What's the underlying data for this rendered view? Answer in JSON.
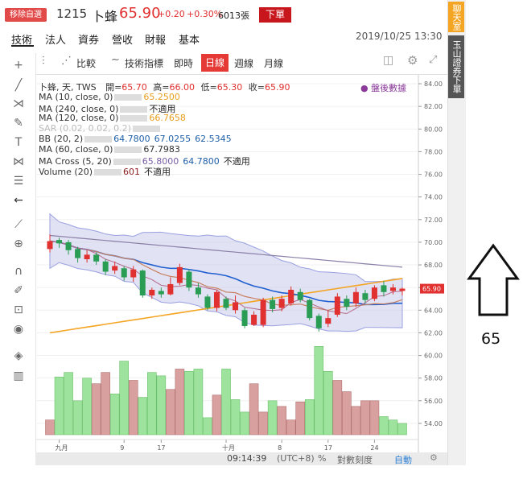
{
  "header": {
    "remove_fav": "移除自選",
    "code": "1215",
    "name": "卜蜂",
    "price": "65.90",
    "change": "+0.20",
    "change_pct": "+0.30%",
    "volume": "6013張",
    "order_button": "下單",
    "datetime": "2019/10/25 13:30"
  },
  "nav_tabs": [
    "技術",
    "法人",
    "資券",
    "營收",
    "財報",
    "基本"
  ],
  "toolbar": {
    "compare": "比較",
    "indicators": "技術指標",
    "periods": [
      "即時",
      "日線",
      "週線",
      "月線"
    ],
    "active_period": "日線"
  },
  "legend": {
    "title": "卜蜂, 天, TWS",
    "ohlc": {
      "open_label": "開=",
      "open": "65.70",
      "high_label": "高=",
      "high": "66.00",
      "low_label": "低=",
      "low": "65.30",
      "close_label": "收=",
      "close": "65.90"
    },
    "after_hours": "盤後數據",
    "rows": [
      {
        "name": "MA (10, close, 0)",
        "values": [
          "65.2500"
        ],
        "color": "#e8a020"
      },
      {
        "name": "MA (240, close, 0)",
        "values": [
          "不適用"
        ],
        "color": "#222"
      },
      {
        "name": "MA (120, close, 0)",
        "values": [
          "66.7658"
        ],
        "color": "#e8a020"
      },
      {
        "name": "SAR (0.02, 0.02, 0.2)",
        "values": [],
        "color": "#bbb"
      },
      {
        "name": "BB (20, 2)",
        "values": [
          "64.7800",
          "67.0255",
          "62.5345"
        ],
        "color": "#1f5fa8"
      },
      {
        "name": "MA (60, close, 0)",
        "values": [
          "67.7983"
        ],
        "color": "#333"
      },
      {
        "name": "MA Cross (5, 20)",
        "values": [
          "65.8000",
          "64.7800",
          "不適用"
        ],
        "color": "#7a5ea8"
      },
      {
        "name": "Volume (20)",
        "values": [
          "601",
          "不適用"
        ],
        "color": "#8b1d1d"
      }
    ]
  },
  "chart_data": {
    "type": "candlestick",
    "y_ticks": [
      "84.00",
      "82.00",
      "80.00",
      "78.00",
      "76.00",
      "74.00",
      "72.00",
      "70.00",
      "68.00",
      "66.00",
      "64.00",
      "62.00",
      "60.00",
      "58.00",
      "56.00",
      "54.00"
    ],
    "price_range": [
      53,
      84.5
    ],
    "last_price_label": "65.90",
    "x_labels": [
      "九月",
      "9",
      "17",
      "十月",
      "8",
      "17",
      "24"
    ],
    "candles": [
      {
        "o": 69.4,
        "c": 70.1,
        "h": 70.7,
        "l": 69.1
      },
      {
        "o": 70.2,
        "c": 69.9,
        "h": 70.4,
        "l": 69.5
      },
      {
        "o": 70.0,
        "c": 69.3,
        "h": 70.2,
        "l": 68.9
      },
      {
        "o": 69.4,
        "c": 68.6,
        "h": 69.6,
        "l": 68.2
      },
      {
        "o": 68.5,
        "c": 68.9,
        "h": 69.3,
        "l": 68.2
      },
      {
        "o": 68.9,
        "c": 68.3,
        "h": 69.1,
        "l": 68.0
      },
      {
        "o": 68.3,
        "c": 67.4,
        "h": 68.5,
        "l": 67.1
      },
      {
        "o": 67.5,
        "c": 67.9,
        "h": 68.3,
        "l": 67.2
      },
      {
        "o": 67.7,
        "c": 66.9,
        "h": 67.9,
        "l": 66.6
      },
      {
        "o": 66.9,
        "c": 67.6,
        "h": 67.9,
        "l": 66.5
      },
      {
        "o": 67.5,
        "c": 65.3,
        "h": 67.6,
        "l": 65.1
      },
      {
        "o": 65.3,
        "c": 65.8,
        "h": 66.0,
        "l": 65.0
      },
      {
        "o": 65.7,
        "c": 65.4,
        "h": 66.0,
        "l": 65.1
      },
      {
        "o": 65.4,
        "c": 66.3,
        "h": 66.9,
        "l": 65.3
      },
      {
        "o": 66.4,
        "c": 67.8,
        "h": 68.1,
        "l": 66.2
      },
      {
        "o": 67.4,
        "c": 66.0,
        "h": 67.6,
        "l": 65.7
      },
      {
        "o": 66.0,
        "c": 65.4,
        "h": 66.4,
        "l": 65.1
      },
      {
        "o": 65.2,
        "c": 64.2,
        "h": 65.4,
        "l": 64.0
      },
      {
        "o": 64.2,
        "c": 65.6,
        "h": 65.8,
        "l": 63.9
      },
      {
        "o": 65.0,
        "c": 64.2,
        "h": 65.2,
        "l": 64.0
      },
      {
        "o": 64.0,
        "c": 64.7,
        "h": 65.3,
        "l": 63.7
      },
      {
        "o": 64.0,
        "c": 62.6,
        "h": 64.2,
        "l": 62.4
      },
      {
        "o": 62.7,
        "c": 63.6,
        "h": 63.9,
        "l": 62.6
      },
      {
        "o": 62.7,
        "c": 64.9,
        "h": 65.1,
        "l": 62.5
      },
      {
        "o": 64.9,
        "c": 64.1,
        "h": 65.2,
        "l": 63.8
      },
      {
        "o": 64.2,
        "c": 65.0,
        "h": 65.3,
        "l": 63.9
      },
      {
        "o": 64.6,
        "c": 65.8,
        "h": 66.1,
        "l": 64.4
      },
      {
        "o": 65.6,
        "c": 64.9,
        "h": 65.9,
        "l": 64.7
      },
      {
        "o": 64.9,
        "c": 63.3,
        "h": 65.0,
        "l": 63.1
      },
      {
        "o": 63.5,
        "c": 62.4,
        "h": 63.7,
        "l": 62.1
      },
      {
        "o": 62.8,
        "c": 63.3,
        "h": 64.0,
        "l": 62.5
      },
      {
        "o": 63.6,
        "c": 65.2,
        "h": 65.5,
        "l": 63.4
      },
      {
        "o": 65.0,
        "c": 64.3,
        "h": 65.3,
        "l": 64.0
      },
      {
        "o": 64.6,
        "c": 65.6,
        "h": 66.0,
        "l": 64.3
      },
      {
        "o": 65.5,
        "c": 64.9,
        "h": 65.8,
        "l": 64.6
      },
      {
        "o": 65.0,
        "c": 66.0,
        "h": 66.2,
        "l": 64.8
      },
      {
        "o": 66.2,
        "c": 65.6,
        "h": 66.6,
        "l": 65.2
      },
      {
        "o": 65.7,
        "c": 66.0,
        "h": 66.3,
        "l": 65.4
      },
      {
        "o": 65.7,
        "c": 65.9,
        "h": 66.0,
        "l": 65.3
      }
    ],
    "volumes": [
      {
        "v": 54.3,
        "up": true
      },
      {
        "v": 58.1,
        "up": false
      },
      {
        "v": 58.5,
        "up": false
      },
      {
        "v": 56.0,
        "up": false
      },
      {
        "v": 58.0,
        "up": false
      },
      {
        "v": 57.5,
        "up": true
      },
      {
        "v": 58.5,
        "up": true
      },
      {
        "v": 56.6,
        "up": false
      },
      {
        "v": 59.5,
        "up": false
      },
      {
        "v": 57.8,
        "up": true
      },
      {
        "v": 56.3,
        "up": false
      },
      {
        "v": 58.5,
        "up": false
      },
      {
        "v": 58.2,
        "up": false
      },
      {
        "v": 57.0,
        "up": true
      },
      {
        "v": 58.8,
        "up": true
      },
      {
        "v": 58.6,
        "up": false
      },
      {
        "v": 58.8,
        "up": false
      },
      {
        "v": 54.5,
        "up": false
      },
      {
        "v": 56.5,
        "up": true
      },
      {
        "v": 58.8,
        "up": false
      },
      {
        "v": 56.1,
        "up": false
      },
      {
        "v": 55.0,
        "up": false
      },
      {
        "v": 57.5,
        "up": true
      },
      {
        "v": 55.0,
        "up": true
      },
      {
        "v": 56.0,
        "up": false
      },
      {
        "v": 55.5,
        "up": true
      },
      {
        "v": 54.3,
        "up": true
      },
      {
        "v": 55.9,
        "up": true
      },
      {
        "v": 56.1,
        "up": false
      },
      {
        "v": 60.8,
        "up": false
      },
      {
        "v": 58.6,
        "up": false
      },
      {
        "v": 57.8,
        "up": true
      },
      {
        "v": 56.8,
        "up": true
      },
      {
        "v": 55.5,
        "up": true
      },
      {
        "v": 56.0,
        "up": true
      },
      {
        "v": 56.0,
        "up": true
      },
      {
        "v": 54.6,
        "up": false
      },
      {
        "v": 54.3,
        "up": false
      },
      {
        "v": 54.0,
        "up": false
      }
    ],
    "volume_base": 53
  },
  "bottom": {
    "time": "09:14:39",
    "tz": "(UTC+8)",
    "pct": "%",
    "log": "對數刻度",
    "auto": "自動"
  },
  "side": {
    "chat": "聊天室",
    "bank": "玉山證券下單"
  },
  "annotation": {
    "number": "65"
  },
  "colors": {
    "up": "#e0302f",
    "down": "#2a9d55",
    "vol_up": "#d9a0a0",
    "vol_down": "#9de39d",
    "band": "#c8cbea"
  }
}
